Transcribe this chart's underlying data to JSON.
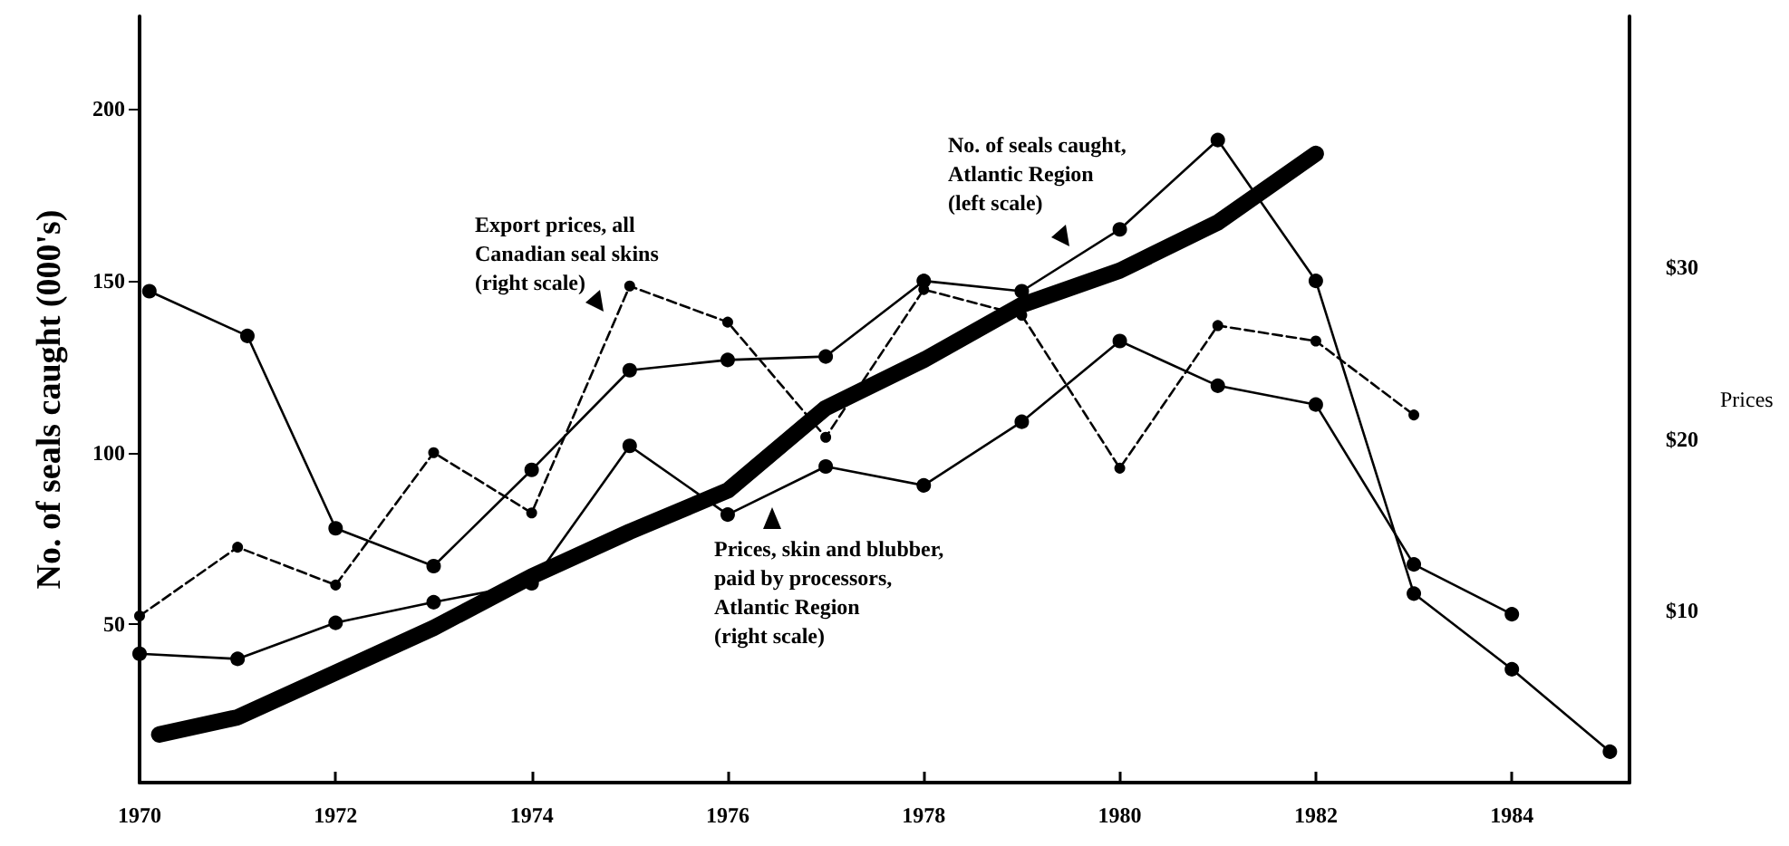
{
  "chart_data": {
    "type": "line",
    "ylabel": "No. of seals caught (000's)",
    "y2label": "Prices",
    "xlim": [
      1970,
      1985.2
    ],
    "xticks": [
      1970,
      1972,
      1974,
      1976,
      1978,
      1980,
      1982,
      1984
    ],
    "ylim": [
      4,
      227
    ],
    "yticks": [
      50,
      100,
      150,
      200
    ],
    "y2lim": [
      0,
      44.6
    ],
    "y2ticks": [
      {
        "value": 10,
        "label": "$10"
      },
      {
        "value": 20,
        "label": "$20"
      },
      {
        "value": 30,
        "label": "$30"
      }
    ],
    "grid": false,
    "annotations": [
      "No. of seals caught, Atlantic Region (left scale)",
      "Export prices, all Canadian seal skins (right scale)",
      "Prices, skin and blubber, paid by processors, Atlantic Region (right scale)"
    ],
    "series": [
      {
        "color": "#000000",
        "marker": "circle",
        "line_style": "solid",
        "x": [
          1970.1,
          1971.1,
          1972,
          1973,
          1974,
          1975,
          1976,
          1977,
          1978,
          1979,
          1980,
          1981,
          1982,
          1983,
          1984,
          1985
        ],
        "values": [
          147,
          134,
          78,
          67,
          95,
          124,
          127,
          128,
          150,
          147,
          165,
          191,
          150,
          59,
          37,
          13
        ]
      },
      {
        "color": "#000000",
        "axis": "y2",
        "marker": "circle",
        "line_style": "dashed",
        "x": [
          1970,
          1971,
          1972,
          1973,
          1974,
          1975,
          1976,
          1977,
          1978,
          1979,
          1980,
          1981,
          1982,
          1983
        ],
        "values": [
          9.7,
          13.7,
          11.5,
          19.2,
          15.7,
          28.9,
          26.8,
          20.1,
          28.7,
          27.2,
          18.3,
          26.6,
          25.7,
          21.4
        ]
      },
      {
        "color": "#000000",
        "axis": "y2",
        "marker": "circle",
        "line_style": "solid",
        "x": [
          1970,
          1971,
          1972,
          1973,
          1974,
          1975,
          1976,
          1977,
          1978,
          1979,
          1980,
          1981,
          1982,
          1983,
          1984
        ],
        "values": [
          7.5,
          7.2,
          9.3,
          10.5,
          11.6,
          19.6,
          15.6,
          18.4,
          17.3,
          21,
          25.7,
          23.1,
          22,
          12.7,
          9.8
        ]
      },
      {
        "color": "#000000",
        "marker": "none",
        "line_style": "solid",
        "x": [
          1970.2,
          1971,
          1972,
          1973,
          1974,
          1975,
          1976,
          1977,
          1978,
          1979,
          1980,
          1981,
          1982
        ],
        "values": [
          18,
          23,
          36,
          49,
          64,
          77,
          89,
          113,
          127,
          143,
          153,
          167,
          187
        ]
      }
    ]
  }
}
